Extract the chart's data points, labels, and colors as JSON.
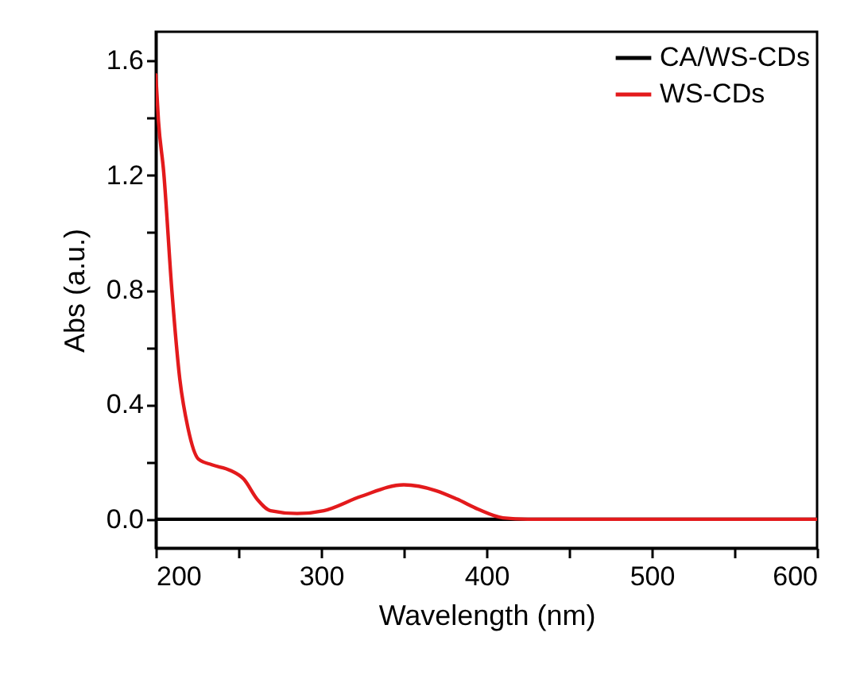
{
  "chart_data": {
    "type": "line",
    "xlabel": "Wavelength (nm)",
    "ylabel": "Abs (a.u.)",
    "xlim": [
      200,
      600
    ],
    "ylim": [
      -0.1,
      1.7
    ],
    "xticks": [
      200,
      {
        "value": 250,
        "label": null
      },
      300,
      {
        "value": 350,
        "label": null
      },
      400,
      {
        "value": 450,
        "label": null
      },
      500,
      {
        "value": 550,
        "label": null
      },
      600
    ],
    "yticks": [
      {
        "value": 0,
        "label": "0.0"
      },
      {
        "value": 0.2,
        "label": null
      },
      0.4,
      {
        "value": 0.6,
        "label": null
      },
      0.8,
      {
        "value": 1.0,
        "label": null
      },
      1.2,
      {
        "value": 1.4,
        "label": null
      },
      1.6
    ],
    "legend": "top right",
    "grid": false,
    "line_style": "solid",
    "series": [
      {
        "name": "CA/WS-CDs",
        "color": "#000000",
        "x": [
          200,
          300,
          400,
          500,
          600
        ],
        "values": [
          0,
          0,
          0,
          0,
          0
        ]
      },
      {
        "name": "WS-CDs",
        "color": "#e31a1c",
        "x": [
          200,
          201.6,
          204.8,
          209.7,
          214.5,
          219.4,
          225.8,
          233.9,
          245.2,
          253.2,
          261.3,
          269.4,
          285.5,
          301.6,
          324.2,
          350,
          369.4,
          382.3,
          395,
          410,
          425,
          500,
          600
        ],
        "values": [
          1.55,
          1.39,
          1.21,
          0.8,
          0.49,
          0.32,
          0.21,
          0.19,
          0.17,
          0.14,
          0.07,
          0.03,
          0.02,
          0.03,
          0.08,
          0.12,
          0.1,
          0.07,
          0.035,
          0.005,
          0,
          0,
          0
        ]
      }
    ]
  }
}
